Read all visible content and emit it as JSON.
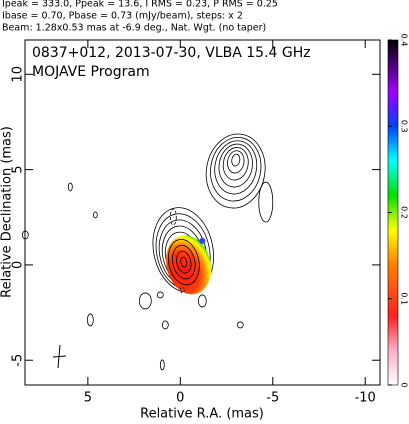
{
  "chart_data": {
    "type": "contour",
    "header": [
      "Ipeak = 333.0, Ppeak = 13.6, I RMS = 0.23, P RMS = 0.25",
      "Ibase = 0.70, Pbase = 0.73 (mJy/beam), steps: x 2",
      "Beam: 1.28x0.53 mas at -6.9 deg., Nat. Wgt. (no taper)"
    ],
    "title": "0837+012, 2013-07-30, VLBA 15.4 GHz",
    "subtitle": "MOJAVE Program",
    "xlabel": "Relative R.A. (mas)",
    "ylabel": "Relative Declination (mas)",
    "xlim": [
      8.4,
      -10.8
    ],
    "ylim": [
      -6.3,
      11.8
    ],
    "xticks": [
      5,
      0,
      -5,
      -10
    ],
    "yticks": [
      -5,
      0,
      5,
      10
    ],
    "colorbar": {
      "lim": [
        0,
        0.4
      ],
      "ticks": [
        0,
        0.1,
        0.2,
        0.3,
        0.4
      ]
    }
  }
}
